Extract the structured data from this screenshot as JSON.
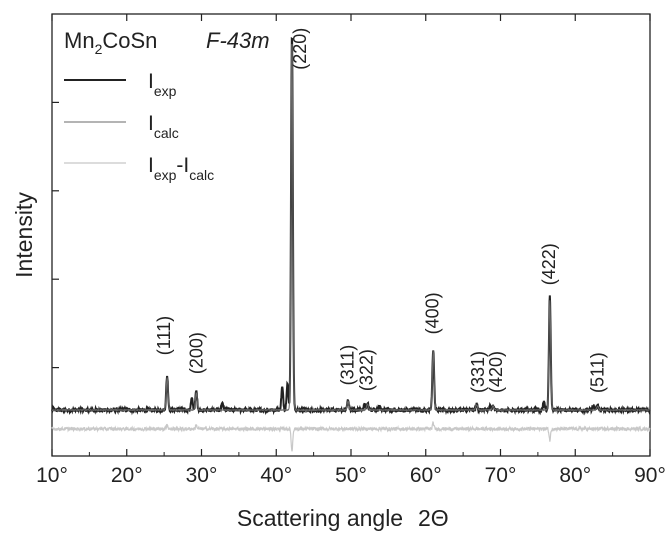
{
  "chart_data": {
    "type": "line",
    "title": "Mn",
    "title_sub": "2",
    "title_rest": "CoSn",
    "space_group": "F-43m",
    "xlabel": "Scattering angle",
    "xlabel_symbol": "2Θ",
    "ylabel": "Intensity",
    "xlim": [
      10,
      90
    ],
    "ylim": [
      -12,
      100
    ],
    "xticks": [
      10,
      20,
      30,
      40,
      50,
      60,
      70,
      80,
      90
    ],
    "xtick_labels": [
      "10°",
      "20°",
      "30°",
      "40°",
      "50°",
      "60°",
      "70°",
      "80°",
      "90°"
    ],
    "grid": false,
    "legend_position": "top-left",
    "series": [
      {
        "name": "exp",
        "name_main": "I",
        "name_sub": "exp",
        "color": "#222222",
        "baseline": 0,
        "peaks": [
          {
            "x": 25.4,
            "y": 9
          },
          {
            "x": 28.7,
            "y": 3
          },
          {
            "x": 29.3,
            "y": 5
          },
          {
            "x": 32.8,
            "y": 2
          },
          {
            "x": 40.8,
            "y": 6
          },
          {
            "x": 41.5,
            "y": 7
          },
          {
            "x": 42.1,
            "y": 100
          },
          {
            "x": 49.6,
            "y": 2.5
          },
          {
            "x": 51.8,
            "y": 1.5
          },
          {
            "x": 52.2,
            "y": 1.8
          },
          {
            "x": 53.8,
            "y": 1
          },
          {
            "x": 61.0,
            "y": 16
          },
          {
            "x": 66.8,
            "y": 1.5
          },
          {
            "x": 68.6,
            "y": 1
          },
          {
            "x": 69.0,
            "y": 1.2
          },
          {
            "x": 75.8,
            "y": 2
          },
          {
            "x": 76.6,
            "y": 30
          },
          {
            "x": 82.4,
            "y": 1
          },
          {
            "x": 83.0,
            "y": 1.2
          }
        ]
      },
      {
        "name": "calc",
        "name_main": "I",
        "name_sub": "calc",
        "color": "#666666",
        "baseline": 0,
        "peaks": [
          {
            "x": 25.4,
            "y": 8.5
          },
          {
            "x": 29.3,
            "y": 4.5
          },
          {
            "x": 42.1,
            "y": 98
          },
          {
            "x": 49.6,
            "y": 2.3
          },
          {
            "x": 52.2,
            "y": 1.6
          },
          {
            "x": 61.0,
            "y": 15.5
          },
          {
            "x": 66.8,
            "y": 1.4
          },
          {
            "x": 69.0,
            "y": 1.1
          },
          {
            "x": 76.6,
            "y": 29
          },
          {
            "x": 83.0,
            "y": 1.1
          }
        ]
      },
      {
        "name": "exp-calc",
        "name_main1": "I",
        "name_sub1": "exp",
        "name_main2": "I",
        "name_sub2": "calc",
        "color": "#c8c8c8",
        "baseline": -5,
        "residuals": [
          {
            "x": 25.4,
            "y": 1.2
          },
          {
            "x": 29.3,
            "y": 1
          },
          {
            "x": 42.1,
            "y": -6
          },
          {
            "x": 61.0,
            "y": 1.5
          },
          {
            "x": 76.6,
            "y": -3
          }
        ]
      }
    ],
    "annotations": [
      {
        "label": "(111)",
        "x": 25.0,
        "y": 14.5
      },
      {
        "label": "(200)",
        "x": 29.3,
        "y": 9.5
      },
      {
        "label": "(220)",
        "x": 43.2,
        "y": 90
      },
      {
        "label": "(311)",
        "x": 49.5,
        "y": 6.5
      },
      {
        "label": "(322)",
        "x": 52.1,
        "y": 5.0
      },
      {
        "label": "(400)",
        "x": 60.9,
        "y": 20
      },
      {
        "label": "(331)",
        "x": 67.0,
        "y": 4.5
      },
      {
        "label": "(420)",
        "x": 69.4,
        "y": 4.5
      },
      {
        "label": "(422)",
        "x": 76.5,
        "y": 33
      },
      {
        "label": "(511)",
        "x": 83.0,
        "y": 4.5
      }
    ]
  }
}
